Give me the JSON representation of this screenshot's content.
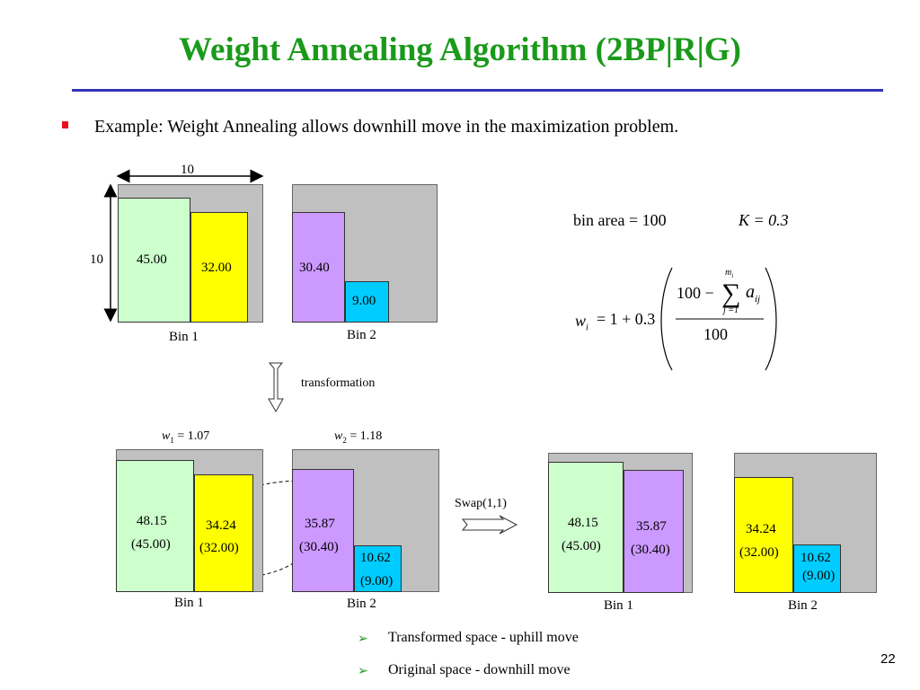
{
  "title": "Weight Annealing Algorithm (2BP|R|G)",
  "bullet": "Example: Weight Annealing allows downhill move in the maximization problem.",
  "top_dim_width": "10",
  "top_dim_height": "10",
  "top_bins": {
    "bin1": {
      "label": "Bin 1",
      "items": [
        "45.00",
        "32.00"
      ]
    },
    "bin2": {
      "label": "Bin 2",
      "items": [
        "30.40",
        "9.00"
      ]
    }
  },
  "formula": {
    "bin_area": "bin area = 100",
    "k": "K = 0.3",
    "lhs_w": "w",
    "lhs_sub": "i",
    "lhs_rest": "= 1 + 0.3",
    "num_left": "100 −",
    "sum_top": "m",
    "sum_top_sub": "i",
    "sum_bottom": "j =1",
    "a": "a",
    "a_sub": "ij",
    "denominator": "100"
  },
  "transformation_label": "transformation",
  "weights": {
    "w1_var": "w",
    "w1_sub": "1",
    "w1_val": "= 1.07",
    "w2_var": "w",
    "w2_sub": "2",
    "w2_val": "= 1.18"
  },
  "bottom_left": {
    "bin1": {
      "label": "Bin 1",
      "items": [
        {
          "t": "48.15",
          "o": "(45.00)"
        },
        {
          "t": "34.24",
          "o": "(32.00)"
        }
      ]
    },
    "bin2": {
      "label": "Bin 2",
      "items": [
        {
          "t": "35.87",
          "o": "(30.40)"
        },
        {
          "t": "10.62",
          "o": "(9.00)"
        }
      ]
    }
  },
  "swap_label": "Swap(1,1)",
  "bottom_right": {
    "bin1": {
      "label": "Bin 1",
      "items": [
        {
          "t": "48.15",
          "o": "(45.00)"
        },
        {
          "t": "35.87",
          "o": "(30.40)"
        }
      ]
    },
    "bin2": {
      "label": "Bin 2",
      "items": [
        {
          "t": "34.24",
          "o": "(32.00)"
        },
        {
          "t": "10.62",
          "o": "(9.00)"
        }
      ]
    }
  },
  "conclusions": [
    "Transformed space - uphill move",
    "Original space - downhill move"
  ],
  "page_number": "22",
  "colors": {
    "title": "#1a9a1a",
    "rule": "#3333bb",
    "bullet": "#e8101e",
    "bin": "#c0c0c0",
    "green": "#ccffcc",
    "yellow": "#ffff00",
    "purple": "#cc99ff",
    "blue": "#00ccff"
  }
}
